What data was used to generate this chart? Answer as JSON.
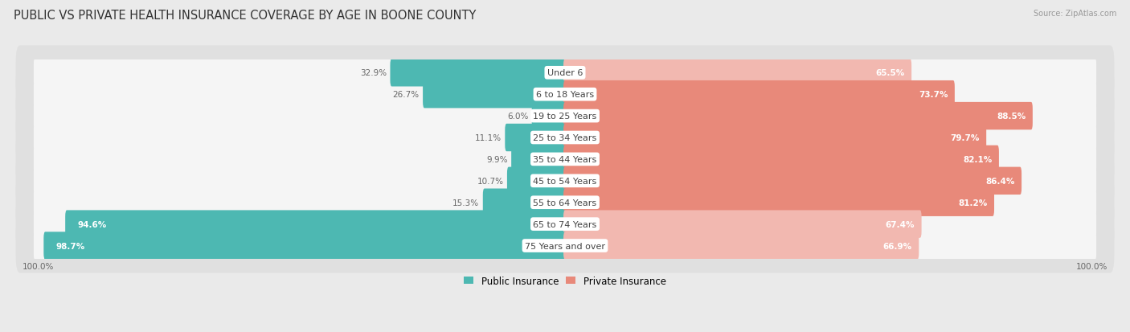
{
  "title": "PUBLIC VS PRIVATE HEALTH INSURANCE COVERAGE BY AGE IN BOONE COUNTY",
  "source": "Source: ZipAtlas.com",
  "categories": [
    "Under 6",
    "6 to 18 Years",
    "19 to 25 Years",
    "25 to 34 Years",
    "35 to 44 Years",
    "45 to 54 Years",
    "55 to 64 Years",
    "65 to 74 Years",
    "75 Years and over"
  ],
  "public_values": [
    32.9,
    26.7,
    6.0,
    11.1,
    9.9,
    10.7,
    15.3,
    94.6,
    98.7
  ],
  "private_values": [
    65.5,
    73.7,
    88.5,
    79.7,
    82.1,
    86.4,
    81.2,
    67.4,
    66.9
  ],
  "public_color": "#4db8b2",
  "private_color": "#e8897a",
  "private_color_light": "#f2b8b0",
  "background_color": "#eaeaea",
  "row_bg_color": "#e0e0e0",
  "bar_bg_color": "#f5f5f5",
  "title_fontsize": 10.5,
  "label_fontsize": 8,
  "value_fontsize": 7.5,
  "legend_fontsize": 8.5,
  "axis_label_fontsize": 7.5
}
